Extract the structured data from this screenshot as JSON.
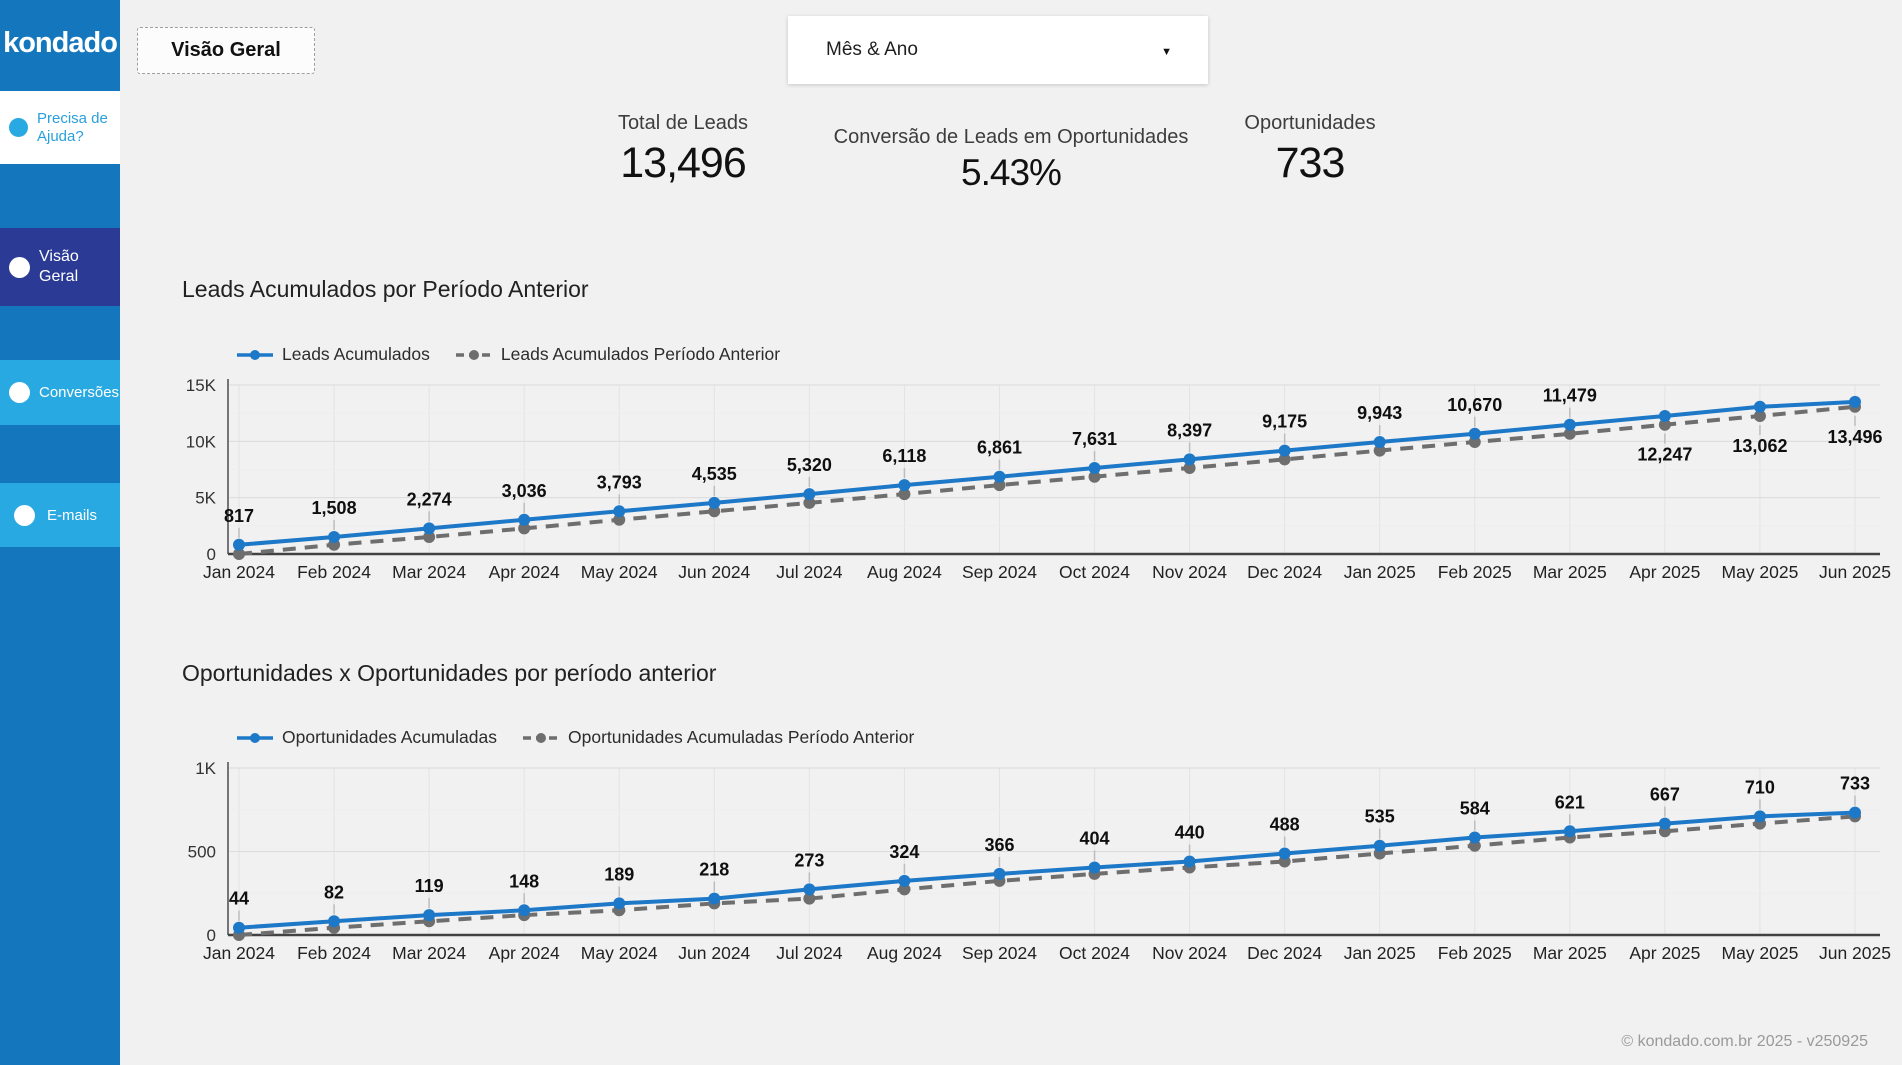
{
  "sidebar": {
    "logo": "kondado",
    "help": {
      "label": "Precisa de Ajuda?"
    },
    "items": [
      {
        "label": "Visão Geral",
        "state": "active"
      },
      {
        "label": "Conversões",
        "state": "normal"
      },
      {
        "label": "E-mails",
        "state": "normal"
      }
    ]
  },
  "header": {
    "page_title": "Visão Geral",
    "filter": {
      "value": "Mês & Ano"
    }
  },
  "kpis": [
    {
      "label": "Total de Leads",
      "value": "13,496"
    },
    {
      "label": "Conversão de Leads em Oportunidades",
      "value": "5.43%"
    },
    {
      "label": "Oportunidades",
      "value": "733"
    }
  ],
  "colors": {
    "sidebar": "#1477be",
    "sidebar_active": "#2b3a94",
    "sidebar_light": "#29a9e1",
    "series_current": "#1e78c8",
    "series_previous": "#6e6e6e"
  },
  "footer": {
    "copyright": "© kondado.com.br 2025 - v250925"
  },
  "chart_data": [
    {
      "type": "line",
      "title": "Leads Acumulados por Período Anterior",
      "x": [
        "Jan 2024",
        "Feb 2024",
        "Mar 2024",
        "Apr 2024",
        "May 2024",
        "Jun 2024",
        "Jul 2024",
        "Aug 2024",
        "Sep 2024",
        "Oct 2024",
        "Nov 2024",
        "Dec 2024",
        "Jan 2025",
        "Feb 2025",
        "Mar 2025",
        "Apr 2025",
        "May 2025",
        "Jun 2025"
      ],
      "series": [
        {
          "name": "Leads Acumulados",
          "style": "solid",
          "color": "#1e78c8",
          "values": [
            817,
            1508,
            2274,
            3036,
            3793,
            4535,
            5320,
            6118,
            6861,
            7631,
            8397,
            9175,
            9943,
            10670,
            11479,
            12247,
            13062,
            13496
          ],
          "labels": [
            "817",
            "1,508",
            "2,274",
            "3,036",
            "3,793",
            "4,535",
            "5,320",
            "6,118",
            "6,861",
            "7,631",
            "8,397",
            "9,175",
            "9,943",
            "10,670",
            "11,479",
            "12,247",
            "13,062",
            "13,496"
          ]
        },
        {
          "name": "Leads Acumulados Período Anterior",
          "style": "dashed",
          "color": "#6e6e6e",
          "values": [
            0,
            817,
            1508,
            2274,
            3036,
            3793,
            4535,
            5320,
            6118,
            6861,
            7631,
            8397,
            9175,
            9943,
            10670,
            11479,
            12247,
            13062
          ]
        }
      ],
      "ylim": [
        0,
        15000
      ],
      "yticks": [
        {
          "value": 0,
          "label": "0"
        },
        {
          "value": 5000,
          "label": "5K"
        },
        {
          "value": 10000,
          "label": "10K"
        },
        {
          "value": 15000,
          "label": "15K"
        }
      ],
      "yticks_minor": [
        2500,
        7500,
        12500
      ],
      "grid": true,
      "legend_position": "top",
      "label_below_indices": [
        15,
        16,
        17
      ]
    },
    {
      "type": "line",
      "title": "Oportunidades x Oportunidades por período anterior",
      "x": [
        "Jan 2024",
        "Feb 2024",
        "Mar 2024",
        "Apr 2024",
        "May 2024",
        "Jun 2024",
        "Jul 2024",
        "Aug 2024",
        "Sep 2024",
        "Oct 2024",
        "Nov 2024",
        "Dec 2024",
        "Jan 2025",
        "Feb 2025",
        "Mar 2025",
        "Apr 2025",
        "May 2025",
        "Jun 2025"
      ],
      "series": [
        {
          "name": "Oportunidades Acumuladas",
          "style": "solid",
          "color": "#1e78c8",
          "values": [
            44,
            82,
            119,
            148,
            189,
            218,
            273,
            324,
            366,
            404,
            440,
            488,
            535,
            584,
            621,
            667,
            710,
            733
          ],
          "labels": [
            "44",
            "82",
            "119",
            "148",
            "189",
            "218",
            "273",
            "324",
            "366",
            "404",
            "440",
            "488",
            "535",
            "584",
            "621",
            "667",
            "710",
            "733"
          ]
        },
        {
          "name": "Oportunidades Acumuladas Período Anterior",
          "style": "dashed",
          "color": "#6e6e6e",
          "values": [
            0,
            44,
            82,
            119,
            148,
            189,
            218,
            273,
            324,
            366,
            404,
            440,
            488,
            535,
            584,
            621,
            667,
            710
          ]
        }
      ],
      "ylim": [
        0,
        1000
      ],
      "yticks": [
        {
          "value": 0,
          "label": "0"
        },
        {
          "value": 500,
          "label": "500"
        },
        {
          "value": 1000,
          "label": "1K"
        }
      ],
      "yticks_minor": [
        250,
        750
      ],
      "grid": true,
      "legend_position": "top",
      "label_below_indices": []
    }
  ]
}
